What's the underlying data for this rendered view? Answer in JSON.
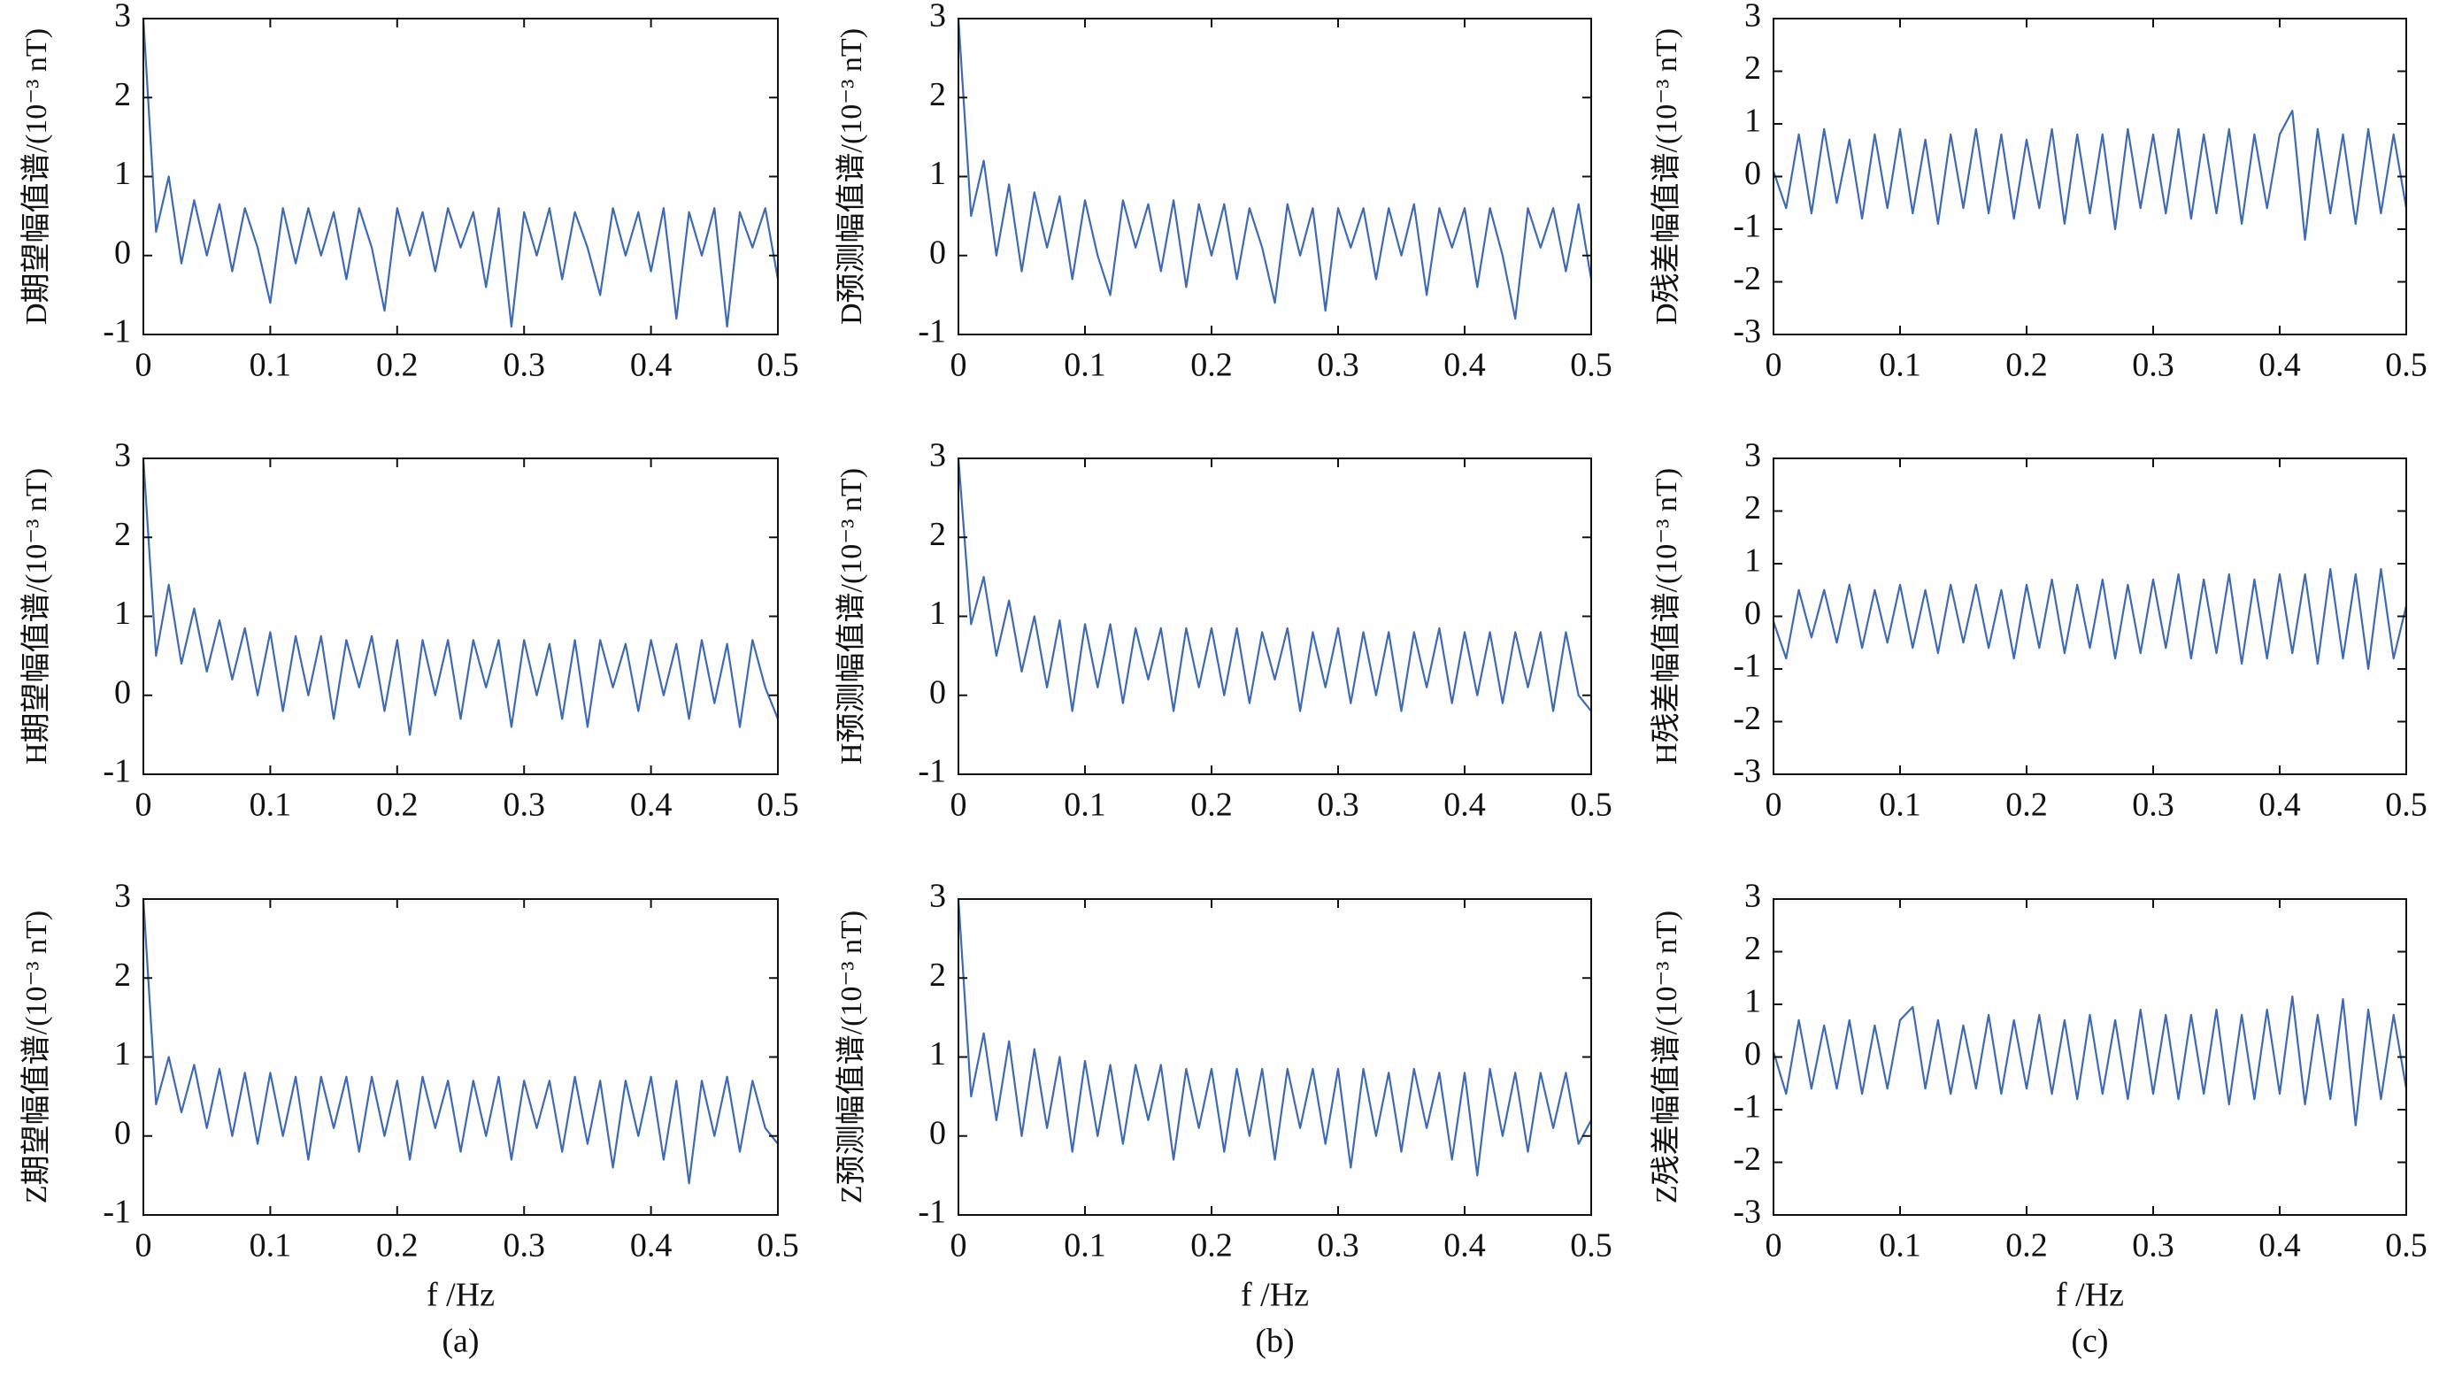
{
  "chart_data": [
    {
      "type": "line",
      "y_label": "D期望幅值谱/(10⁻³ nT)",
      "xlim": [
        0,
        0.5
      ],
      "ylim": [
        -1,
        3
      ],
      "xticks": [
        0,
        0.1,
        0.2,
        0.3,
        0.4,
        0.5
      ],
      "yticks": [
        -1,
        0,
        1,
        2,
        3
      ],
      "x": [
        0,
        0.01,
        0.02,
        0.03,
        0.04,
        0.05,
        0.06,
        0.07,
        0.08,
        0.09,
        0.1,
        0.11,
        0.12,
        0.13,
        0.14,
        0.15,
        0.16,
        0.17,
        0.18,
        0.19,
        0.2,
        0.21,
        0.22,
        0.23,
        0.24,
        0.25,
        0.26,
        0.27,
        0.28,
        0.29,
        0.3,
        0.31,
        0.32,
        0.33,
        0.34,
        0.35,
        0.36,
        0.37,
        0.38,
        0.39,
        0.4,
        0.41,
        0.42,
        0.43,
        0.44,
        0.45,
        0.46,
        0.47,
        0.48,
        0.49,
        0.5
      ],
      "series": [
        {
          "color": "#3d6ab3",
          "values": [
            3,
            0.3,
            1.0,
            -0.1,
            0.7,
            0.0,
            0.65,
            -0.2,
            0.6,
            0.1,
            -0.6,
            0.6,
            -0.1,
            0.6,
            0.0,
            0.55,
            -0.3,
            0.6,
            0.1,
            -0.7,
            0.6,
            0.0,
            0.55,
            -0.2,
            0.6,
            0.1,
            0.55,
            -0.4,
            0.6,
            -0.9,
            0.55,
            0.0,
            0.6,
            -0.3,
            0.55,
            0.1,
            -0.5,
            0.6,
            0.0,
            0.55,
            -0.2,
            0.6,
            -0.8,
            0.55,
            0.0,
            0.6,
            -0.9,
            0.55,
            0.1,
            0.6,
            -0.3
          ]
        }
      ]
    },
    {
      "type": "line",
      "y_label": "D预测幅值谱/(10⁻³ nT)",
      "xlim": [
        0,
        0.5
      ],
      "ylim": [
        -1,
        3
      ],
      "xticks": [
        0,
        0.1,
        0.2,
        0.3,
        0.4,
        0.5
      ],
      "yticks": [
        -1,
        0,
        1,
        2,
        3
      ],
      "x": [
        0,
        0.01,
        0.02,
        0.03,
        0.04,
        0.05,
        0.06,
        0.07,
        0.08,
        0.09,
        0.1,
        0.11,
        0.12,
        0.13,
        0.14,
        0.15,
        0.16,
        0.17,
        0.18,
        0.19,
        0.2,
        0.21,
        0.22,
        0.23,
        0.24,
        0.25,
        0.26,
        0.27,
        0.28,
        0.29,
        0.3,
        0.31,
        0.32,
        0.33,
        0.34,
        0.35,
        0.36,
        0.37,
        0.38,
        0.39,
        0.4,
        0.41,
        0.42,
        0.43,
        0.44,
        0.45,
        0.46,
        0.47,
        0.48,
        0.49,
        0.5
      ],
      "series": [
        {
          "color": "#3d6ab3",
          "values": [
            3,
            0.5,
            1.2,
            0.0,
            0.9,
            -0.2,
            0.8,
            0.1,
            0.75,
            -0.3,
            0.7,
            0.0,
            -0.5,
            0.7,
            0.1,
            0.65,
            -0.2,
            0.7,
            -0.4,
            0.65,
            0.0,
            0.65,
            -0.3,
            0.6,
            0.1,
            -0.6,
            0.65,
            0.0,
            0.6,
            -0.7,
            0.6,
            0.1,
            0.6,
            -0.3,
            0.6,
            0.0,
            0.65,
            -0.5,
            0.6,
            0.1,
            0.6,
            -0.4,
            0.6,
            0.0,
            -0.8,
            0.6,
            0.1,
            0.6,
            -0.2,
            0.65,
            -0.3
          ]
        }
      ]
    },
    {
      "type": "line",
      "y_label": "D残差幅值谱/(10⁻³ nT)",
      "xlim": [
        0,
        0.5
      ],
      "ylim": [
        -3,
        3
      ],
      "xticks": [
        0,
        0.1,
        0.2,
        0.3,
        0.4,
        0.5
      ],
      "yticks": [
        -3,
        -2,
        -1,
        0,
        1,
        2,
        3
      ],
      "x": [
        0,
        0.01,
        0.02,
        0.03,
        0.04,
        0.05,
        0.06,
        0.07,
        0.08,
        0.09,
        0.1,
        0.11,
        0.12,
        0.13,
        0.14,
        0.15,
        0.16,
        0.17,
        0.18,
        0.19,
        0.2,
        0.21,
        0.22,
        0.23,
        0.24,
        0.25,
        0.26,
        0.27,
        0.28,
        0.29,
        0.3,
        0.31,
        0.32,
        0.33,
        0.34,
        0.35,
        0.36,
        0.37,
        0.38,
        0.39,
        0.4,
        0.41,
        0.42,
        0.43,
        0.44,
        0.45,
        0.46,
        0.47,
        0.48,
        0.49,
        0.5
      ],
      "series": [
        {
          "color": "#3d6ab3",
          "values": [
            0.1,
            -0.6,
            0.8,
            -0.7,
            0.9,
            -0.5,
            0.7,
            -0.8,
            0.8,
            -0.6,
            0.9,
            -0.7,
            0.7,
            -0.9,
            0.8,
            -0.6,
            0.9,
            -0.7,
            0.8,
            -0.8,
            0.7,
            -0.6,
            0.9,
            -0.9,
            0.8,
            -0.7,
            0.8,
            -1.0,
            0.9,
            -0.6,
            0.8,
            -0.7,
            0.9,
            -0.8,
            0.8,
            -0.7,
            0.9,
            -0.9,
            0.8,
            -0.6,
            0.8,
            1.25,
            -1.2,
            0.9,
            -0.7,
            0.8,
            -0.9,
            0.9,
            -0.7,
            0.8,
            -0.6
          ]
        }
      ]
    },
    {
      "type": "line",
      "y_label": "H期望幅值谱/(10⁻³ nT)",
      "xlim": [
        0,
        0.5
      ],
      "ylim": [
        -1,
        3
      ],
      "xticks": [
        0,
        0.1,
        0.2,
        0.3,
        0.4,
        0.5
      ],
      "yticks": [
        -1,
        0,
        1,
        2,
        3
      ],
      "x": [
        0,
        0.01,
        0.02,
        0.03,
        0.04,
        0.05,
        0.06,
        0.07,
        0.08,
        0.09,
        0.1,
        0.11,
        0.12,
        0.13,
        0.14,
        0.15,
        0.16,
        0.17,
        0.18,
        0.19,
        0.2,
        0.21,
        0.22,
        0.23,
        0.24,
        0.25,
        0.26,
        0.27,
        0.28,
        0.29,
        0.3,
        0.31,
        0.32,
        0.33,
        0.34,
        0.35,
        0.36,
        0.37,
        0.38,
        0.39,
        0.4,
        0.41,
        0.42,
        0.43,
        0.44,
        0.45,
        0.46,
        0.47,
        0.48,
        0.49,
        0.5
      ],
      "series": [
        {
          "color": "#3d6ab3",
          "values": [
            3,
            0.5,
            1.4,
            0.4,
            1.1,
            0.3,
            0.95,
            0.2,
            0.85,
            0.0,
            0.8,
            -0.2,
            0.75,
            0.0,
            0.75,
            -0.3,
            0.7,
            0.1,
            0.75,
            -0.2,
            0.7,
            -0.5,
            0.7,
            0.0,
            0.7,
            -0.3,
            0.7,
            0.1,
            0.7,
            -0.4,
            0.7,
            0.0,
            0.65,
            -0.3,
            0.7,
            -0.4,
            0.7,
            0.1,
            0.65,
            -0.2,
            0.7,
            0.0,
            0.65,
            -0.3,
            0.7,
            -0.1,
            0.65,
            -0.4,
            0.7,
            0.1,
            -0.3
          ]
        }
      ]
    },
    {
      "type": "line",
      "y_label": "H预测幅值谱/(10⁻³ nT)",
      "xlim": [
        0,
        0.5
      ],
      "ylim": [
        -1,
        3
      ],
      "xticks": [
        0,
        0.1,
        0.2,
        0.3,
        0.4,
        0.5
      ],
      "yticks": [
        -1,
        0,
        1,
        2,
        3
      ],
      "x": [
        0,
        0.01,
        0.02,
        0.03,
        0.04,
        0.05,
        0.06,
        0.07,
        0.08,
        0.09,
        0.1,
        0.11,
        0.12,
        0.13,
        0.14,
        0.15,
        0.16,
        0.17,
        0.18,
        0.19,
        0.2,
        0.21,
        0.22,
        0.23,
        0.24,
        0.25,
        0.26,
        0.27,
        0.28,
        0.29,
        0.3,
        0.31,
        0.32,
        0.33,
        0.34,
        0.35,
        0.36,
        0.37,
        0.38,
        0.39,
        0.4,
        0.41,
        0.42,
        0.43,
        0.44,
        0.45,
        0.46,
        0.47,
        0.48,
        0.49,
        0.5
      ],
      "series": [
        {
          "color": "#3d6ab3",
          "values": [
            3,
            0.9,
            1.5,
            0.5,
            1.2,
            0.3,
            1.0,
            0.1,
            0.95,
            -0.2,
            0.9,
            0.1,
            0.9,
            -0.1,
            0.85,
            0.2,
            0.85,
            -0.2,
            0.85,
            0.1,
            0.85,
            0.0,
            0.85,
            -0.1,
            0.8,
            0.2,
            0.85,
            -0.2,
            0.8,
            0.1,
            0.85,
            -0.1,
            0.8,
            0.0,
            0.8,
            -0.2,
            0.8,
            0.1,
            0.85,
            -0.1,
            0.8,
            0.0,
            0.8,
            -0.1,
            0.8,
            0.1,
            0.8,
            -0.2,
            0.8,
            0.0,
            -0.2
          ]
        }
      ]
    },
    {
      "type": "line",
      "y_label": "H残差幅值谱/(10⁻³ nT)",
      "xlim": [
        0,
        0.5
      ],
      "ylim": [
        -3,
        3
      ],
      "xticks": [
        0,
        0.1,
        0.2,
        0.3,
        0.4,
        0.5
      ],
      "yticks": [
        -3,
        -2,
        -1,
        0,
        1,
        2,
        3
      ],
      "x": [
        0,
        0.01,
        0.02,
        0.03,
        0.04,
        0.05,
        0.06,
        0.07,
        0.08,
        0.09,
        0.1,
        0.11,
        0.12,
        0.13,
        0.14,
        0.15,
        0.16,
        0.17,
        0.18,
        0.19,
        0.2,
        0.21,
        0.22,
        0.23,
        0.24,
        0.25,
        0.26,
        0.27,
        0.28,
        0.29,
        0.3,
        0.31,
        0.32,
        0.33,
        0.34,
        0.35,
        0.36,
        0.37,
        0.38,
        0.39,
        0.4,
        0.41,
        0.42,
        0.43,
        0.44,
        0.45,
        0.46,
        0.47,
        0.48,
        0.49,
        0.5
      ],
      "series": [
        {
          "color": "#3d6ab3",
          "values": [
            -0.1,
            -0.8,
            0.5,
            -0.4,
            0.5,
            -0.5,
            0.6,
            -0.6,
            0.5,
            -0.5,
            0.6,
            -0.6,
            0.5,
            -0.7,
            0.6,
            -0.5,
            0.6,
            -0.6,
            0.5,
            -0.8,
            0.6,
            -0.6,
            0.7,
            -0.7,
            0.6,
            -0.6,
            0.7,
            -0.8,
            0.6,
            -0.7,
            0.7,
            -0.6,
            0.8,
            -0.8,
            0.7,
            -0.7,
            0.8,
            -0.9,
            0.7,
            -0.8,
            0.8,
            -0.7,
            0.8,
            -0.9,
            0.9,
            -0.8,
            0.8,
            -1.0,
            0.9,
            -0.8,
            0.2
          ]
        }
      ]
    },
    {
      "type": "line",
      "y_label": "Z期望幅值谱/(10⁻³ nT)",
      "x_label": "f /Hz",
      "caption": "(a)",
      "xlim": [
        0,
        0.5
      ],
      "ylim": [
        -1,
        3
      ],
      "xticks": [
        0,
        0.1,
        0.2,
        0.3,
        0.4,
        0.5
      ],
      "yticks": [
        -1,
        0,
        1,
        2,
        3
      ],
      "x": [
        0,
        0.01,
        0.02,
        0.03,
        0.04,
        0.05,
        0.06,
        0.07,
        0.08,
        0.09,
        0.1,
        0.11,
        0.12,
        0.13,
        0.14,
        0.15,
        0.16,
        0.17,
        0.18,
        0.19,
        0.2,
        0.21,
        0.22,
        0.23,
        0.24,
        0.25,
        0.26,
        0.27,
        0.28,
        0.29,
        0.3,
        0.31,
        0.32,
        0.33,
        0.34,
        0.35,
        0.36,
        0.37,
        0.38,
        0.39,
        0.4,
        0.41,
        0.42,
        0.43,
        0.44,
        0.45,
        0.46,
        0.47,
        0.48,
        0.49,
        0.5
      ],
      "series": [
        {
          "color": "#3d6ab3",
          "values": [
            3,
            0.4,
            1.0,
            0.3,
            0.9,
            0.1,
            0.85,
            0.0,
            0.8,
            -0.1,
            0.8,
            0.0,
            0.75,
            -0.3,
            0.75,
            0.1,
            0.75,
            -0.2,
            0.75,
            0.0,
            0.7,
            -0.3,
            0.75,
            0.1,
            0.7,
            -0.2,
            0.7,
            0.0,
            0.75,
            -0.3,
            0.7,
            0.1,
            0.7,
            -0.2,
            0.75,
            -0.1,
            0.7,
            -0.4,
            0.7,
            0.0,
            0.75,
            -0.3,
            0.7,
            -0.6,
            0.7,
            0.0,
            0.75,
            -0.2,
            0.7,
            0.1,
            -0.1
          ]
        }
      ]
    },
    {
      "type": "line",
      "y_label": "Z预测幅值谱/(10⁻³ nT)",
      "x_label": "f /Hz",
      "caption": "(b)",
      "xlim": [
        0,
        0.5
      ],
      "ylim": [
        -1,
        3
      ],
      "xticks": [
        0,
        0.1,
        0.2,
        0.3,
        0.4,
        0.5
      ],
      "yticks": [
        -1,
        0,
        1,
        2,
        3
      ],
      "x": [
        0,
        0.01,
        0.02,
        0.03,
        0.04,
        0.05,
        0.06,
        0.07,
        0.08,
        0.09,
        0.1,
        0.11,
        0.12,
        0.13,
        0.14,
        0.15,
        0.16,
        0.17,
        0.18,
        0.19,
        0.2,
        0.21,
        0.22,
        0.23,
        0.24,
        0.25,
        0.26,
        0.27,
        0.28,
        0.29,
        0.3,
        0.31,
        0.32,
        0.33,
        0.34,
        0.35,
        0.36,
        0.37,
        0.38,
        0.39,
        0.4,
        0.41,
        0.42,
        0.43,
        0.44,
        0.45,
        0.46,
        0.47,
        0.48,
        0.49,
        0.5
      ],
      "series": [
        {
          "color": "#3d6ab3",
          "values": [
            3,
            0.5,
            1.3,
            0.2,
            1.2,
            0.0,
            1.1,
            0.1,
            1.0,
            -0.2,
            0.95,
            0.0,
            0.9,
            -0.1,
            0.9,
            0.2,
            0.9,
            -0.3,
            0.85,
            0.1,
            0.85,
            -0.2,
            0.85,
            0.0,
            0.85,
            -0.3,
            0.85,
            0.1,
            0.85,
            -0.1,
            0.85,
            -0.4,
            0.85,
            0.0,
            0.8,
            -0.2,
            0.85,
            0.1,
            0.8,
            -0.3,
            0.8,
            -0.5,
            0.85,
            0.0,
            0.8,
            -0.2,
            0.8,
            0.1,
            0.8,
            -0.1,
            0.2
          ]
        }
      ]
    },
    {
      "type": "line",
      "y_label": "Z残差幅值谱/(10⁻³ nT)",
      "x_label": "f /Hz",
      "caption": "(c)",
      "xlim": [
        0,
        0.5
      ],
      "ylim": [
        -3,
        3
      ],
      "xticks": [
        0,
        0.1,
        0.2,
        0.3,
        0.4,
        0.5
      ],
      "yticks": [
        -3,
        -2,
        -1,
        0,
        1,
        2,
        3
      ],
      "x": [
        0,
        0.01,
        0.02,
        0.03,
        0.04,
        0.05,
        0.06,
        0.07,
        0.08,
        0.09,
        0.1,
        0.11,
        0.12,
        0.13,
        0.14,
        0.15,
        0.16,
        0.17,
        0.18,
        0.19,
        0.2,
        0.21,
        0.22,
        0.23,
        0.24,
        0.25,
        0.26,
        0.27,
        0.28,
        0.29,
        0.3,
        0.31,
        0.32,
        0.33,
        0.34,
        0.35,
        0.36,
        0.37,
        0.38,
        0.39,
        0.4,
        0.41,
        0.42,
        0.43,
        0.44,
        0.45,
        0.46,
        0.47,
        0.48,
        0.49,
        0.5
      ],
      "series": [
        {
          "color": "#3d6ab3",
          "values": [
            0.1,
            -0.7,
            0.7,
            -0.6,
            0.6,
            -0.6,
            0.7,
            -0.7,
            0.6,
            -0.6,
            0.7,
            0.95,
            -0.6,
            0.7,
            -0.7,
            0.6,
            -0.6,
            0.8,
            -0.7,
            0.7,
            -0.6,
            0.8,
            -0.7,
            0.7,
            -0.8,
            0.8,
            -0.7,
            0.7,
            -0.8,
            0.9,
            -0.7,
            0.8,
            -0.8,
            0.8,
            -0.7,
            0.9,
            -0.9,
            0.8,
            -0.8,
            0.9,
            -0.7,
            1.15,
            -0.9,
            0.8,
            -0.8,
            1.1,
            -1.3,
            0.9,
            -0.8,
            0.8,
            -0.6
          ]
        }
      ]
    }
  ]
}
